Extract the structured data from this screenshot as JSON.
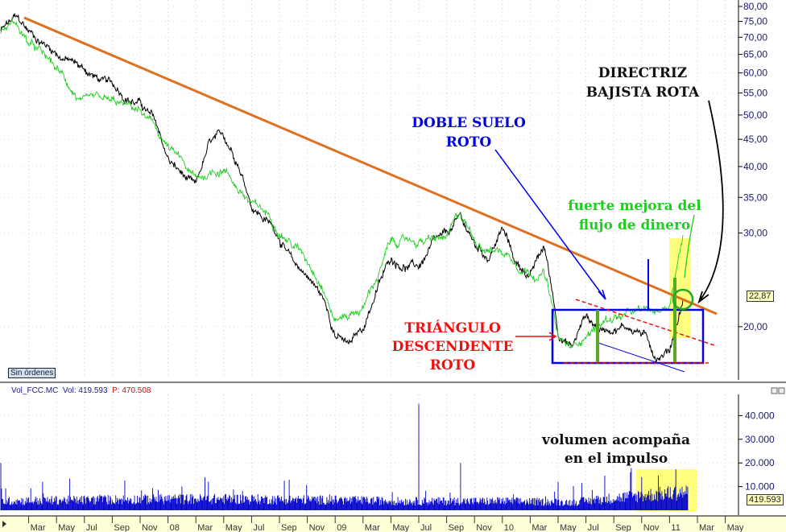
{
  "chart_data": {
    "type": "line",
    "yscale": "log",
    "ylim": [
      16,
      82
    ],
    "y_ticks": [
      "80,00",
      "75,00",
      "70,00",
      "65,00",
      "60,00",
      "55,00",
      "50,00",
      "45,00",
      "40,00",
      "35,00",
      "30,00",
      "20,00"
    ],
    "y_tick_values": [
      80,
      75,
      70,
      65,
      60,
      55,
      50,
      45,
      40,
      35,
      30,
      20
    ],
    "x_ticks": [
      "Mar",
      "May",
      "Jul",
      "Sep",
      "Nov",
      "08",
      "Mar",
      "May",
      "Jul",
      "Sep",
      "Nov",
      "09",
      "Mar",
      "May",
      "Jul",
      "Sep",
      "Nov",
      "10",
      "Mar",
      "May",
      "Jul",
      "Sep",
      "Nov",
      "11",
      "Mar",
      "May"
    ],
    "x_tick_dates": [
      "2007-03",
      "2007-05",
      "2007-07",
      "2007-09",
      "2007-11",
      "2008-01",
      "2008-03",
      "2008-05",
      "2008-07",
      "2008-09",
      "2008-11",
      "2009-01",
      "2009-03",
      "2009-05",
      "2009-07",
      "2009-09",
      "2009-11",
      "2010-01",
      "2010-03",
      "2010-05",
      "2010-07",
      "2010-09",
      "2010-11",
      "2011-01",
      "2011-03",
      "2011-05"
    ],
    "grid": true,
    "last_price": "22,87",
    "series": [
      {
        "color": "#000000",
        "points": [
          [
            "2007-01",
            72
          ],
          [
            "2007-02",
            75.3
          ],
          [
            "2007-03",
            71
          ],
          [
            "2007-05",
            66
          ],
          [
            "2007-07",
            61
          ],
          [
            "2007-09",
            56
          ],
          [
            "2007-11",
            53
          ],
          [
            "2007-12",
            48.6
          ],
          [
            "2008-01",
            41
          ],
          [
            "2008-03",
            35.7
          ],
          [
            "2008-04",
            43.2
          ],
          [
            "2008-05",
            44
          ],
          [
            "2008-06",
            41
          ],
          [
            "2008-07",
            34.4
          ],
          [
            "2008-09",
            30
          ],
          [
            "2008-10",
            26.1
          ],
          [
            "2008-11",
            25
          ],
          [
            "2008-12",
            22.9
          ],
          [
            "2009-01",
            19.7
          ],
          [
            "2009-02",
            18.4
          ],
          [
            "2009-03",
            19.7
          ],
          [
            "2009-04",
            23.5
          ],
          [
            "2009-05",
            26.7
          ],
          [
            "2009-07",
            26
          ],
          [
            "2009-08",
            28.3
          ],
          [
            "2009-09",
            28.8
          ],
          [
            "2009-10",
            31.3
          ],
          [
            "2009-11",
            28
          ],
          [
            "2009-12",
            27
          ],
          [
            "2010-01",
            30.5
          ],
          [
            "2010-02",
            26.1
          ],
          [
            "2010-03",
            25.1
          ],
          [
            "2010-04",
            28
          ],
          [
            "2010-05",
            19.7
          ],
          [
            "2010-06",
            18.4
          ],
          [
            "2010-07",
            21.1
          ],
          [
            "2010-08",
            19.7
          ],
          [
            "2010-09",
            20.3
          ],
          [
            "2010-10",
            20.3
          ],
          [
            "2010-11",
            19.7
          ],
          [
            "2010-12",
            17.8
          ],
          [
            "2011-01",
            18.4
          ],
          [
            "2011-02",
            22.87
          ]
        ]
      },
      {
        "color": "#22cc22",
        "points": [
          [
            "2007-01",
            72
          ],
          [
            "2007-02",
            75
          ],
          [
            "2007-03",
            68
          ],
          [
            "2007-05",
            60
          ],
          [
            "2007-07",
            52
          ],
          [
            "2007-09",
            51
          ],
          [
            "2007-11",
            50
          ],
          [
            "2008-01",
            43
          ],
          [
            "2008-03",
            37
          ],
          [
            "2008-05",
            40
          ],
          [
            "2008-07",
            34
          ],
          [
            "2008-09",
            31
          ],
          [
            "2008-10",
            29
          ],
          [
            "2008-11",
            27
          ],
          [
            "2008-12",
            25
          ],
          [
            "2009-01",
            21
          ],
          [
            "2009-03",
            22
          ],
          [
            "2009-04",
            25
          ],
          [
            "2009-05",
            28.7
          ],
          [
            "2009-07",
            29
          ],
          [
            "2009-09",
            29
          ],
          [
            "2009-10",
            32
          ],
          [
            "2009-11",
            29
          ],
          [
            "2010-01",
            28
          ],
          [
            "2010-03",
            26
          ],
          [
            "2010-04",
            26
          ],
          [
            "2010-05",
            19
          ],
          [
            "2010-06",
            18
          ],
          [
            "2010-07",
            19.5
          ],
          [
            "2010-09",
            21
          ],
          [
            "2010-11",
            21
          ],
          [
            "2010-12",
            21
          ],
          [
            "2011-01",
            22
          ],
          [
            "2011-02",
            30.4
          ]
        ]
      }
    ],
    "volume": {
      "ylim": [
        0,
        48000
      ],
      "y_ticks": [
        "40.000",
        "30.000",
        "20.000",
        "10.000"
      ],
      "y_tick_values": [
        40000,
        30000,
        20000,
        10000
      ],
      "last_value": "419.593",
      "color": "#0000cc",
      "monthly_typical": [
        [
          "2007-01",
          4000
        ],
        [
          "2007-06",
          4500
        ],
        [
          "2008-01",
          5000
        ],
        [
          "2008-06",
          5000
        ],
        [
          "2009-01",
          4500
        ],
        [
          "2009-06",
          4000
        ],
        [
          "2010-01",
          4000
        ],
        [
          "2010-06",
          3500
        ],
        [
          "2010-10",
          6000
        ],
        [
          "2011-02",
          8000
        ]
      ],
      "spikes": [
        [
          "2007-01",
          20000
        ],
        [
          "2007-04",
          12000
        ],
        [
          "2008-02",
          10000
        ],
        [
          "2009-07",
          45000
        ],
        [
          "2009-10",
          20000
        ],
        [
          "2010-05",
          12000
        ],
        [
          "2010-11",
          14000
        ]
      ]
    }
  },
  "annotations": {
    "directriz": [
      "DIRECTRIZ",
      "BAJISTA ROTA"
    ],
    "doble": [
      "DOBLE SUELO",
      "ROTO"
    ],
    "triangulo": [
      "TRIÁNGULO",
      "DESCENDENTE",
      "ROTO"
    ],
    "flujo": [
      "fuerte mejora del",
      "flujo de dinero"
    ],
    "volumen": [
      "volumen acompaña",
      "en el impulso"
    ]
  },
  "colors": {
    "trendline": "#e07020",
    "box": "#0000ee",
    "triangle": "#ee1111",
    "highlight": "#ffff66",
    "green_text": "#22cc22"
  },
  "ui": {
    "orders_label": "Sin órdenes",
    "vol_name": "Vol_FCC.MC",
    "vol_label": "Vol: 419.593",
    "p_label": "P: 470.508"
  }
}
